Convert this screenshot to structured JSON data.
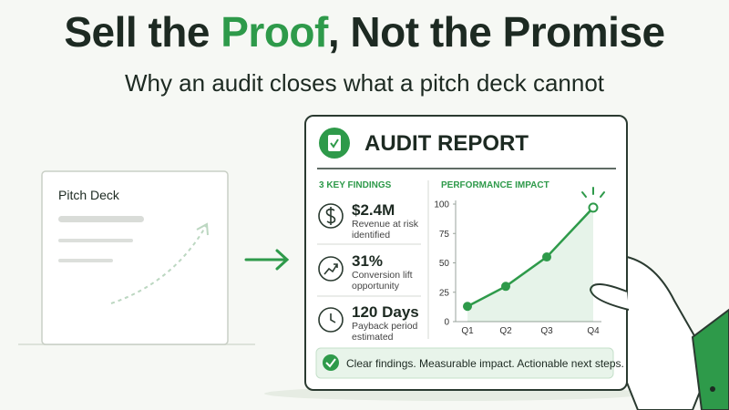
{
  "header": {
    "title_parts": [
      "Sell the",
      "Proof",
      ", Not the Promise"
    ],
    "subtitle": "Why an audit closes what a pitch deck cannot"
  },
  "pitch_deck": {
    "title": "Pitch Deck"
  },
  "report": {
    "title": "AUDIT REPORT",
    "findings_heading": "3 KEY FINDINGS",
    "findings": [
      {
        "value": "$2.4M",
        "text": "Revenue at risk identified"
      },
      {
        "value": "31%",
        "text": "Conversion lift opportunity"
      },
      {
        "value": "120 Days",
        "text": "Payback period estimated"
      }
    ],
    "footer": "Clear findings. Measurable impact. Actionable next steps."
  },
  "chart": {
    "type": "line",
    "title": "PERFORMANCE IMPACT",
    "categories": [
      "Q1",
      "Q2",
      "Q3",
      "Q4"
    ],
    "values": [
      13,
      30,
      55,
      97
    ],
    "ylim": [
      0,
      100
    ],
    "yticks": [
      0,
      25,
      50,
      75,
      100
    ],
    "color": "#2e9a4a"
  }
}
